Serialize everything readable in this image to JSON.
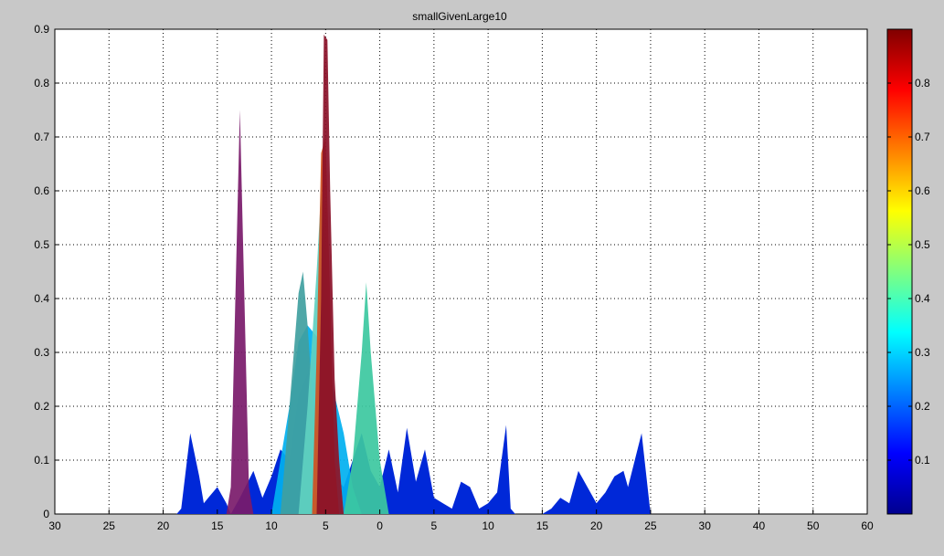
{
  "chart_data": {
    "type": "area",
    "title": "smallGivenLarge10",
    "xlabel": "",
    "ylabel": "",
    "grid": true,
    "x_tick_labels": [
      "30",
      "25",
      "20",
      "15",
      "10",
      "5",
      "0",
      "5",
      "10",
      "15",
      "20",
      "25",
      "30",
      "40",
      "50",
      "60"
    ],
    "y_ticks": [
      0,
      0.1,
      0.2,
      0.3,
      0.4,
      0.5,
      0.6,
      0.7,
      0.8,
      0.9
    ],
    "y_tick_labels": [
      "0",
      "0.1",
      "0.2",
      "0.3",
      "0.4",
      "0.5",
      "0.6",
      "0.7",
      "0.8",
      "0.9"
    ],
    "ylim": [
      0,
      0.9
    ],
    "colorbar": {
      "range": [
        0,
        0.9
      ],
      "colormap": "jet",
      "tick_labels": [
        "0.1",
        "0.2",
        "0.3",
        "0.4",
        "0.5",
        "0.6",
        "0.7",
        "0.8"
      ],
      "ticks": [
        0.1,
        0.2,
        0.3,
        0.4,
        0.5,
        0.6,
        0.7,
        0.8
      ]
    },
    "series": [
      {
        "color": "#0028d8",
        "points": [
          [
            -16.5,
            0
          ],
          [
            -16,
            0.01
          ],
          [
            -15,
            0.15
          ],
          [
            -14,
            0.07
          ],
          [
            -13.5,
            0.02
          ],
          [
            -13,
            0.03
          ],
          [
            -12,
            0.05
          ],
          [
            -11,
            0.02
          ],
          [
            -10.5,
            0
          ],
          [
            -9.5,
            0.03
          ],
          [
            -8,
            0.08
          ],
          [
            -7,
            0.03
          ],
          [
            -6,
            0.07
          ],
          [
            -5,
            0.12
          ],
          [
            -4,
            0.1
          ],
          [
            -3,
            0.22
          ],
          [
            -2,
            0.26
          ],
          [
            -1,
            0.24
          ],
          [
            0,
            0.15
          ],
          [
            1,
            0.07
          ],
          [
            2,
            0.05
          ],
          [
            3,
            0.1
          ],
          [
            4,
            0.15
          ],
          [
            5,
            0.08
          ],
          [
            6,
            0.05
          ],
          [
            7,
            0.12
          ],
          [
            8,
            0.04
          ],
          [
            9,
            0.16
          ],
          [
            10,
            0.06
          ],
          [
            11,
            0.12
          ],
          [
            12,
            0.03
          ],
          [
            13,
            0.02
          ],
          [
            14,
            0.01
          ],
          [
            15,
            0.06
          ],
          [
            16,
            0.05
          ],
          [
            17,
            0.01
          ],
          [
            18,
            0.02
          ],
          [
            19,
            0.04
          ],
          [
            20,
            0.165
          ],
          [
            20.5,
            0.01
          ],
          [
            21,
            0
          ],
          [
            22,
            0
          ],
          [
            23,
            0
          ],
          [
            24,
            0
          ],
          [
            25,
            0.01
          ],
          [
            26,
            0.03
          ],
          [
            27,
            0.02
          ],
          [
            28,
            0.08
          ],
          [
            29,
            0.05
          ],
          [
            30,
            0.02
          ],
          [
            31,
            0.04
          ],
          [
            32,
            0.07
          ],
          [
            33,
            0.08
          ],
          [
            33.5,
            0.05
          ],
          [
            35,
            0.15
          ],
          [
            36,
            0
          ]
        ]
      },
      {
        "color": "#00b0f0",
        "points": [
          [
            -6,
            0
          ],
          [
            -5,
            0.1
          ],
          [
            -4,
            0.2
          ],
          [
            -3,
            0.32
          ],
          [
            -2,
            0.35
          ],
          [
            -1,
            0.33
          ],
          [
            0,
            0.3
          ],
          [
            1,
            0.22
          ],
          [
            2,
            0.15
          ],
          [
            3,
            0.05
          ],
          [
            4,
            0
          ]
        ]
      },
      {
        "color": "#7a1a6a",
        "points": [
          [
            -11,
            0
          ],
          [
            -10.5,
            0.05
          ],
          [
            -9.5,
            0.75
          ],
          [
            -8.5,
            0.05
          ],
          [
            -8,
            0
          ]
        ]
      },
      {
        "color": "#40a0a0",
        "points": [
          [
            -5,
            0
          ],
          [
            -4,
            0.2
          ],
          [
            -3,
            0.41
          ],
          [
            -2.5,
            0.45
          ],
          [
            -2,
            0.35
          ],
          [
            -1,
            0.1
          ],
          [
            0,
            0
          ]
        ]
      },
      {
        "color": "#3cc8a0",
        "points": [
          [
            2,
            0
          ],
          [
            3,
            0.1
          ],
          [
            4,
            0.3
          ],
          [
            4.5,
            0.43
          ],
          [
            5,
            0.3
          ],
          [
            6,
            0.1
          ],
          [
            7,
            0
          ]
        ]
      },
      {
        "color": "#60d0c0",
        "points": [
          [
            -3,
            0
          ],
          [
            -2,
            0.2
          ],
          [
            -1,
            0.45
          ],
          [
            -0.5,
            0.6
          ],
          [
            0,
            0.5
          ],
          [
            0.5,
            0.3
          ],
          [
            1.5,
            0.1
          ],
          [
            2,
            0
          ]
        ]
      },
      {
        "color": "#d05020",
        "points": [
          [
            -1.5,
            0
          ],
          [
            -1,
            0.3
          ],
          [
            -0.5,
            0.67
          ],
          [
            0,
            0.7
          ],
          [
            0.5,
            0.4
          ],
          [
            1,
            0.1
          ],
          [
            1.5,
            0
          ]
        ]
      },
      {
        "color": "#8a1028",
        "points": [
          [
            -1,
            0
          ],
          [
            -0.5,
            0.4
          ],
          [
            -0.2,
            0.89
          ],
          [
            0.2,
            0.88
          ],
          [
            0.5,
            0.6
          ],
          [
            1,
            0.25
          ],
          [
            1.5,
            0.1
          ],
          [
            2,
            0
          ]
        ]
      }
    ]
  }
}
